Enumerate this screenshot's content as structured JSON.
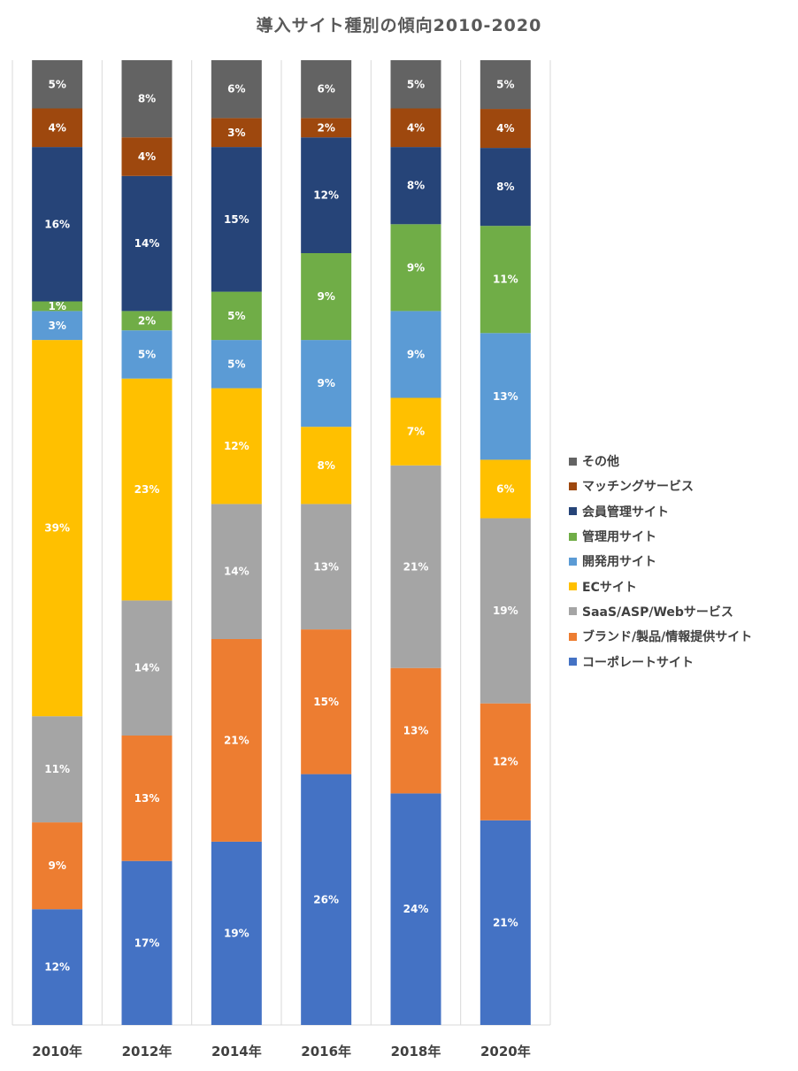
{
  "chart_data": {
    "type": "bar",
    "stacked": true,
    "title": "導入サイト種別の傾向2010-2020",
    "categories": [
      "2010年",
      "2012年",
      "2014年",
      "2016年",
      "2018年",
      "2020年"
    ],
    "series": [
      {
        "name": "コーポレートサイト",
        "color": "#4472C4",
        "values": [
          12,
          17,
          19,
          26,
          24,
          21
        ]
      },
      {
        "name": "ブランド/製品/情報提供サイト",
        "color": "#ED7D31",
        "values": [
          9,
          13,
          21,
          15,
          13,
          12
        ]
      },
      {
        "name": "SaaS/ASP/Webサービス",
        "color": "#A5A5A5",
        "values": [
          11,
          14,
          14,
          13,
          21,
          19
        ]
      },
      {
        "name": "ECサイト",
        "color": "#FFC000",
        "values": [
          39,
          23,
          12,
          8,
          7,
          6
        ]
      },
      {
        "name": "開発用サイト",
        "color": "#5B9BD5",
        "values": [
          3,
          5,
          5,
          9,
          9,
          13
        ]
      },
      {
        "name": "管理用サイト",
        "color": "#70AD47",
        "values": [
          1,
          2,
          5,
          9,
          9,
          11
        ]
      },
      {
        "name": "会員管理サイト",
        "color": "#264478",
        "values": [
          16,
          14,
          15,
          12,
          8,
          8
        ]
      },
      {
        "name": "マッチングサービス",
        "color": "#9E480E",
        "values": [
          4,
          4,
          3,
          2,
          4,
          4
        ]
      },
      {
        "name": "その他",
        "color": "#636363",
        "values": [
          5,
          8,
          6,
          6,
          5,
          5
        ]
      }
    ],
    "value_suffix": "%",
    "legend_position": "right",
    "legend_order": [
      "その他",
      "マッチングサービス",
      "会員管理サイト",
      "管理用サイト",
      "開発用サイト",
      "ECサイト",
      "SaaS/ASP/Webサービス",
      "ブランド/製品/情報提供サイト",
      "コーポレートサイト"
    ],
    "grid": "vertical-category-separators",
    "ylim": [
      0,
      100
    ]
  }
}
